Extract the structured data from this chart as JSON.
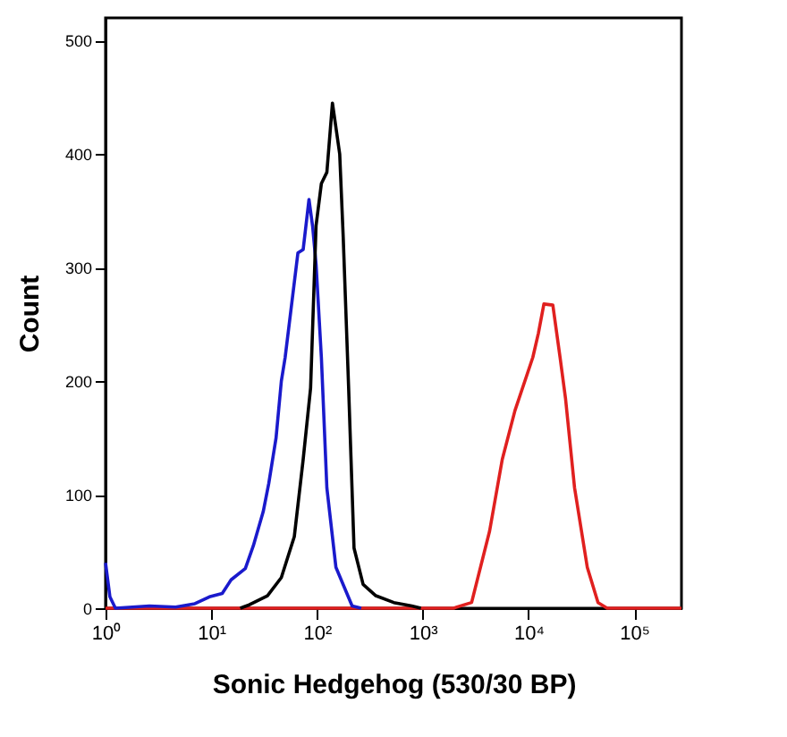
{
  "chart_data": {
    "type": "line",
    "xlabel": "Sonic Hedgehog (530/30 BP)",
    "ylabel": "Count",
    "log": "x",
    "grid": false,
    "legend": false,
    "xlim": [
      1,
      280000
    ],
    "ylim": [
      0,
      520
    ],
    "xticks": [
      {
        "value": 1,
        "label": "10⁰"
      },
      {
        "value": 10,
        "label": "10¹"
      },
      {
        "value": 100,
        "label": "10²"
      },
      {
        "value": 1000,
        "label": "10³"
      },
      {
        "value": 10000,
        "label": "10⁴"
      },
      {
        "value": 100000,
        "label": "10⁵"
      }
    ],
    "yticks": [
      0,
      100,
      200,
      300,
      400,
      500
    ],
    "series": [
      {
        "color": "#e0201f",
        "x": [
          1,
          1954,
          2900,
          4290,
          5650,
          7450,
          11000,
          12400,
          14000,
          17000,
          19900,
          22400,
          27300,
          36000,
          45500,
          55500,
          280000
        ],
        "values": [
          0,
          0,
          5,
          68,
          131,
          174,
          221,
          242,
          268,
          267,
          221,
          185,
          106,
          36,
          5,
          0,
          0
        ]
      },
      {
        "color": "#1a1acc",
        "x": [
          1,
          1.1,
          1.24,
          2.6,
          4.6,
          7,
          9.6,
          12.7,
          15.4,
          21,
          25,
          31,
          35,
          41,
          46,
          50,
          66,
          74,
          84,
          91,
          98,
          110,
          124,
          151,
          215,
          262
        ],
        "values": [
          40,
          10,
          0,
          2,
          1,
          4,
          10,
          13,
          25,
          35,
          55,
          85,
          110,
          150,
          200,
          221,
          313,
          316,
          360,
          336,
          303,
          221,
          106,
          36,
          2,
          0
        ]
      },
      {
        "color": "#000000",
        "x": [
          18.8,
          22.9,
          34,
          46,
          61,
          74,
          87,
          98,
          110,
          124,
          140,
          164,
          177,
          199,
          224,
          273,
          360,
          532,
          789,
          961
        ],
        "values": [
          0,
          3,
          11,
          27,
          63,
          131,
          194,
          337,
          374,
          384,
          445,
          400,
          327,
          195,
          53,
          21,
          11,
          5,
          2,
          0
        ]
      }
    ]
  }
}
